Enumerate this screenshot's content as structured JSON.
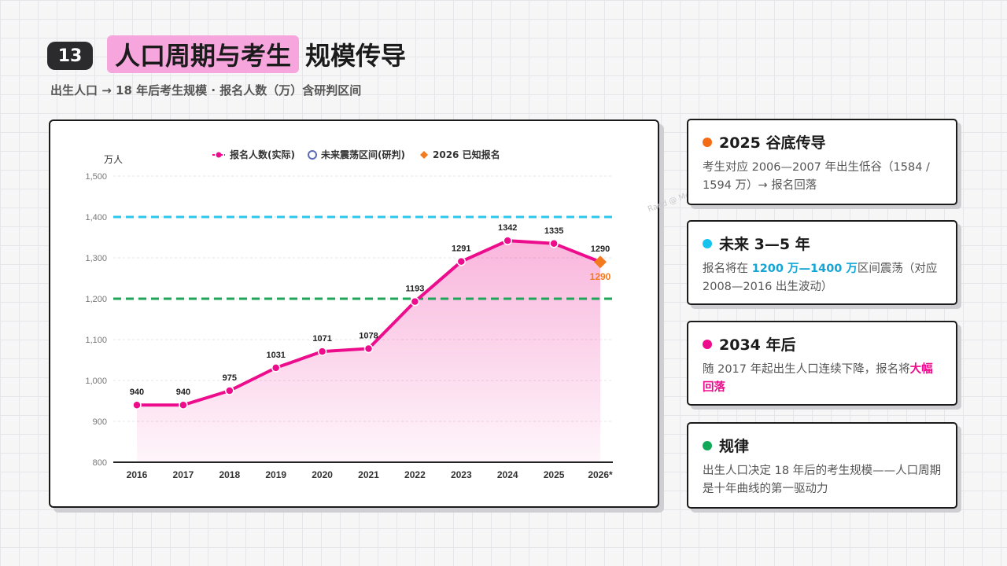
{
  "header": {
    "slide_number": "13",
    "title_highlight": "人口周期与考生",
    "title_rest": "规模传导",
    "subtitle": "出生人口 → 18 年后考生规模 · 报名人数（万）含研判区间"
  },
  "watermark": "Rand @ Metachat.io",
  "chart_data": {
    "type": "line",
    "ylabel": "万人",
    "ylim": [
      800,
      1500
    ],
    "yticks": [
      800,
      900,
      1000,
      1100,
      1200,
      1300,
      1400,
      1500
    ],
    "ytick_labels": [
      "800",
      "900",
      "1,000",
      "1,100",
      "1,200",
      "1,300",
      "1,400",
      "1,500"
    ],
    "categories": [
      "2016",
      "2017",
      "2018",
      "2019",
      "2020",
      "2021",
      "2022",
      "2023",
      "2024",
      "2025",
      "2026*"
    ],
    "legend": [
      {
        "name": "报名人数(实际)",
        "color": "#ec0c8c"
      },
      {
        "name": "未来震荡区间(研判)",
        "color": "#5b6bb8"
      },
      {
        "name": "2026 已知报名",
        "color": "#f47a1f"
      }
    ],
    "series": [
      {
        "name": "报名人数(实际)",
        "color": "#ec0c8c",
        "values": [
          940,
          940,
          975,
          1031,
          1071,
          1078,
          1193,
          1291,
          1342,
          1335,
          1290
        ],
        "labels": [
          "940",
          "940",
          "975",
          "1031",
          "1071",
          "1078",
          "1193",
          "1291",
          "1342",
          "1335",
          "1290"
        ]
      }
    ],
    "reference_lines": [
      {
        "value": 1400,
        "color": "#2bc6ec"
      },
      {
        "value": 1200,
        "color": "#1ea55a"
      }
    ],
    "highlight_point": {
      "category": "2026*",
      "value": 1290,
      "label": "1290",
      "color": "#f47a1f"
    },
    "grid": true,
    "legend_position": "top"
  },
  "cards": [
    {
      "title": "2025 谷底传导",
      "dot_color": "#f46b16",
      "body": [
        {
          "text": "考生对应 2006—2007 年出生低谷（1584 / 1594 万）→ 报名回落"
        }
      ]
    },
    {
      "title": "未来 3—5 年",
      "dot_color": "#16c3ef",
      "body": [
        {
          "text": "报名将在 "
        },
        {
          "text": "1200 万—1400 万",
          "em": "blue"
        },
        {
          "text": "区间震荡（对应 2008—2016 出生波动）"
        }
      ]
    },
    {
      "title": "2034 年后",
      "dot_color": "#ec0c8c",
      "body": [
        {
          "text": "随 2017 年起出生人口连续下降，报名将"
        },
        {
          "text": "大幅回落",
          "em": "pink"
        }
      ]
    },
    {
      "title": "规律",
      "dot_color": "#12a857",
      "body": [
        {
          "text": "出生人口决定 18 年后的考生规模——人口周期是十年曲线的第一驱动力"
        }
      ]
    }
  ]
}
